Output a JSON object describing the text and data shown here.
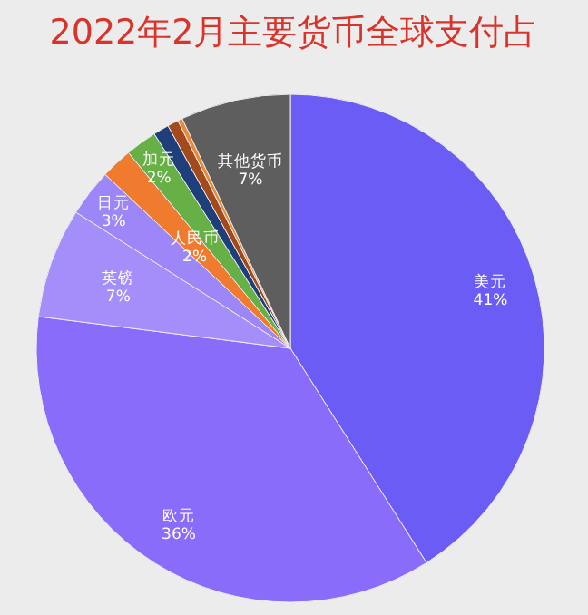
{
  "chart_data": {
    "type": "pie",
    "title": "2022年2月主要货币全球支付占",
    "categories": [
      "美元",
      "欧元",
      "英镑",
      "日元",
      "人民币",
      "加元",
      null,
      null,
      null,
      "其他货币"
    ],
    "values": [
      41,
      36,
      7,
      3,
      2,
      2,
      1,
      0.7,
      0.3,
      7
    ],
    "value_labels": [
      "41%",
      "36%",
      "7%",
      "3%",
      "2%",
      "2%",
      null,
      null,
      null,
      "7%"
    ],
    "colors": [
      "#6b5cf6",
      "#8a6cfb",
      "#a48ef9",
      "#9d86f7",
      "#f07a2e",
      "#66b046",
      "#1f3f7a",
      "#a34a1c",
      "#e8893a",
      "#5e5e5e"
    ]
  }
}
